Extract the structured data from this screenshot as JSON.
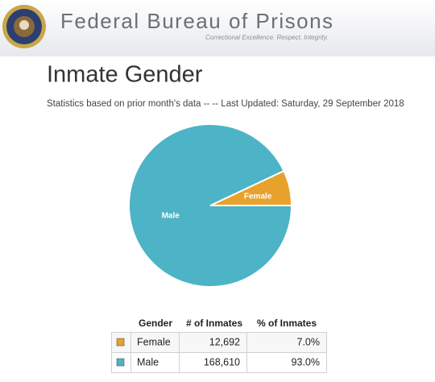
{
  "header": {
    "agency": "Federal Bureau of Prisons",
    "tagline": "Correctional Excellence.  Respect.  Integrity."
  },
  "chart_data": {
    "type": "pie",
    "title": "Inmate Gender",
    "subtitle": "Statistics based on prior month's data -- -- Last Updated: Saturday, 29 September 2018",
    "categories": [
      "Female",
      "Male"
    ],
    "values": [
      7.0,
      93.0
    ],
    "colors": [
      "#e8a22b",
      "#4db3c6"
    ]
  },
  "table": {
    "headers": [
      "Gender",
      "# of Inmates",
      "% of Inmates"
    ],
    "rows": [
      [
        "Female",
        "12,692",
        "7.0%"
      ],
      [
        "Male",
        "168,610",
        "93.0%"
      ]
    ]
  }
}
